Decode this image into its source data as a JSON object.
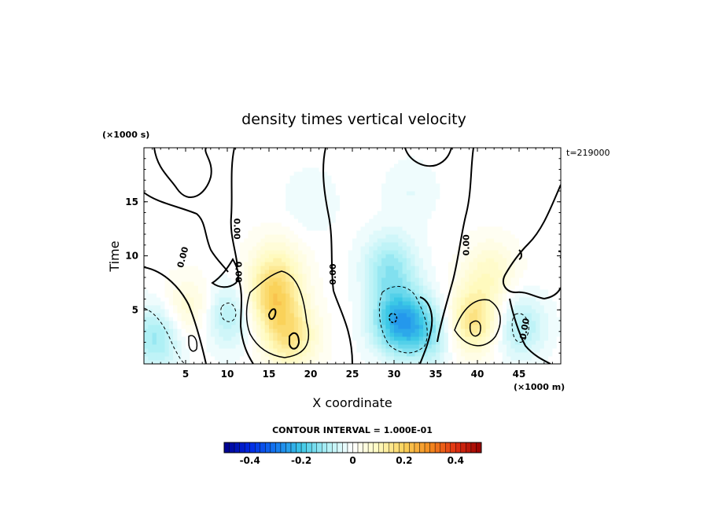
{
  "chart_data": {
    "type": "heatmap",
    "title": "density times vertical velocity",
    "xlabel": "X coordinate",
    "ylabel": "Time",
    "x_unit": "(×1000 m)",
    "y_unit": "(×1000 s)",
    "timestamp": "t=219000",
    "contour_interval_text": "CONTOUR INTERVAL = 1.000E-01",
    "contour_label": "0.00",
    "xlim": [
      0,
      50
    ],
    "ylim": [
      0,
      20
    ],
    "x_ticks": [
      5,
      10,
      15,
      20,
      25,
      30,
      35,
      40,
      45
    ],
    "x_tick_labels": [
      "5",
      "10",
      "15",
      "20",
      "25",
      "30",
      "35",
      "40",
      "45"
    ],
    "y_ticks": [
      5,
      10,
      15
    ],
    "y_tick_labels": [
      "5",
      "10",
      "15"
    ],
    "colorbar": {
      "min": -0.5,
      "max": 0.5,
      "n_levels": 50,
      "ticks": [
        -0.4,
        -0.2,
        0,
        0.2,
        0.4
      ],
      "tick_labels": [
        "-0.4",
        "-0.2",
        "0",
        "0.2",
        "0.4"
      ]
    },
    "features": [
      {
        "x": 1.5,
        "y": 2.5,
        "value": -0.12
      },
      {
        "x": 5.5,
        "y": 5.0,
        "value": 0.08
      },
      {
        "x": 10.0,
        "y": 4.5,
        "value": -0.1
      },
      {
        "x": 15.5,
        "y": 6.0,
        "value": 0.16
      },
      {
        "x": 17.5,
        "y": 2.5,
        "value": 0.14
      },
      {
        "x": 16.0,
        "y": 9.0,
        "value": 0.08
      },
      {
        "x": 30.5,
        "y": 4.0,
        "value": -0.22
      },
      {
        "x": 29.5,
        "y": 9.0,
        "value": -0.12
      },
      {
        "x": 34.0,
        "y": 3.0,
        "value": -0.12
      },
      {
        "x": 39.5,
        "y": 4.0,
        "value": 0.16
      },
      {
        "x": 41.5,
        "y": 8.5,
        "value": 0.08
      },
      {
        "x": 45.0,
        "y": 3.5,
        "value": -0.1
      },
      {
        "x": 20.0,
        "y": 15.0,
        "value": -0.03
      },
      {
        "x": 32.0,
        "y": 16.0,
        "value": -0.03
      }
    ]
  }
}
